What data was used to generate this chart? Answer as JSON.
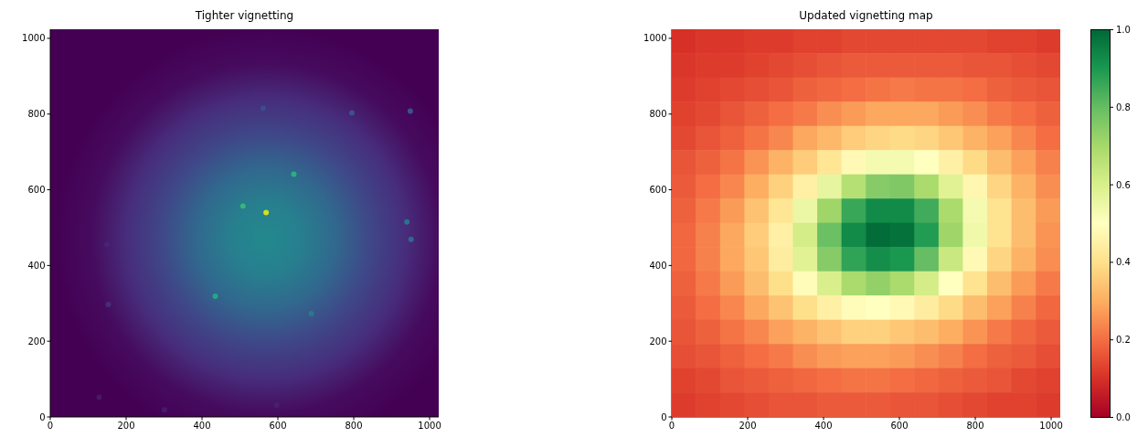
{
  "chart_data": [
    {
      "type": "scatter",
      "title": "Tighter vignetting",
      "x": [
        569,
        508,
        642,
        435,
        688,
        561,
        795,
        949,
        940,
        951,
        150,
        153,
        129,
        301,
        597
      ],
      "values": [
        540,
        557,
        641,
        319,
        273,
        815,
        803,
        808,
        515,
        469,
        456,
        297,
        52,
        19,
        31
      ],
      "colors": [
        "#d2e21b",
        "#35b779",
        "#29af7f",
        "#22a884",
        "#2a788e",
        "#3e4c8a",
        "#3b528b",
        "#3b528b",
        "#2c728e",
        "#30698e",
        "#482475",
        "#472c7a",
        "#48186a",
        "#481a6c",
        "#481f70"
      ],
      "marker": "circle",
      "xlim": [
        0,
        1024
      ],
      "ylim": [
        0,
        1024
      ],
      "xticks": [
        0,
        200,
        400,
        600,
        800,
        1000
      ],
      "yticks": [
        0,
        200,
        400,
        600,
        800,
        1000
      ]
    },
    {
      "type": "heatmap",
      "title": "Updated vignetting map",
      "x": [
        32,
        96,
        160,
        224,
        288,
        352,
        416,
        480,
        544,
        608,
        672,
        736,
        800,
        864,
        928,
        992
      ],
      "y": [
        992,
        928,
        864,
        800,
        736,
        672,
        608,
        544,
        480,
        416,
        352,
        288,
        224,
        160,
        96,
        32
      ],
      "xlim": [
        0,
        1024
      ],
      "ylim": [
        0,
        1024
      ],
      "xticks": [
        0,
        200,
        400,
        600,
        800,
        1000
      ],
      "yticks": [
        0,
        200,
        400,
        600,
        800,
        1000
      ],
      "clim": [
        0,
        1
      ],
      "cticks": [
        {
          "value": 0,
          "label": "0.0"
        },
        0.2,
        0.4,
        0.6,
        0.8,
        {
          "value": 1,
          "label": "1.0"
        }
      ],
      "cells": [
        [
          0.1,
          0.11,
          0.11,
          0.12,
          0.12,
          0.13,
          0.13,
          0.14,
          0.14,
          0.14,
          0.14,
          0.14,
          0.14,
          0.13,
          0.13,
          0.12
        ],
        [
          0.11,
          0.12,
          0.12,
          0.13,
          0.14,
          0.15,
          0.16,
          0.17,
          0.17,
          0.17,
          0.17,
          0.17,
          0.16,
          0.16,
          0.15,
          0.14
        ],
        [
          0.12,
          0.13,
          0.14,
          0.15,
          0.16,
          0.18,
          0.19,
          0.2,
          0.21,
          0.22,
          0.21,
          0.21,
          0.2,
          0.18,
          0.17,
          0.16
        ],
        [
          0.13,
          0.14,
          0.16,
          0.18,
          0.2,
          0.22,
          0.25,
          0.27,
          0.29,
          0.29,
          0.29,
          0.27,
          0.25,
          0.22,
          0.2,
          0.18
        ],
        [
          0.14,
          0.16,
          0.18,
          0.21,
          0.24,
          0.29,
          0.32,
          0.36,
          0.38,
          0.39,
          0.38,
          0.35,
          0.31,
          0.28,
          0.24,
          0.2
        ],
        [
          0.16,
          0.18,
          0.21,
          0.26,
          0.31,
          0.36,
          0.42,
          0.48,
          0.53,
          0.53,
          0.5,
          0.45,
          0.39,
          0.33,
          0.28,
          0.23
        ],
        [
          0.17,
          0.2,
          0.24,
          0.3,
          0.37,
          0.45,
          0.56,
          0.67,
          0.75,
          0.76,
          0.69,
          0.58,
          0.47,
          0.38,
          0.31,
          0.25
        ],
        [
          0.18,
          0.22,
          0.27,
          0.34,
          0.42,
          0.55,
          0.71,
          0.86,
          0.93,
          0.93,
          0.85,
          0.69,
          0.53,
          0.41,
          0.33,
          0.27
        ],
        [
          0.19,
          0.23,
          0.29,
          0.36,
          0.45,
          0.61,
          0.79,
          0.93,
          0.99,
          0.98,
          0.89,
          0.71,
          0.54,
          0.41,
          0.33,
          0.26
        ],
        [
          0.19,
          0.23,
          0.29,
          0.35,
          0.44,
          0.58,
          0.75,
          0.87,
          0.92,
          0.9,
          0.8,
          0.63,
          0.48,
          0.38,
          0.31,
          0.25
        ],
        [
          0.18,
          0.22,
          0.27,
          0.33,
          0.4,
          0.49,
          0.6,
          0.69,
          0.73,
          0.69,
          0.61,
          0.5,
          0.41,
          0.33,
          0.27,
          0.22
        ],
        [
          0.17,
          0.2,
          0.24,
          0.29,
          0.34,
          0.4,
          0.45,
          0.49,
          0.5,
          0.48,
          0.44,
          0.39,
          0.33,
          0.28,
          0.23,
          0.19
        ],
        [
          0.16,
          0.18,
          0.21,
          0.24,
          0.28,
          0.31,
          0.34,
          0.37,
          0.37,
          0.35,
          0.33,
          0.3,
          0.26,
          0.22,
          0.19,
          0.17
        ],
        [
          0.15,
          0.16,
          0.18,
          0.2,
          0.22,
          0.25,
          0.27,
          0.28,
          0.28,
          0.27,
          0.25,
          0.23,
          0.2,
          0.18,
          0.17,
          0.15
        ],
        [
          0.13,
          0.14,
          0.16,
          0.17,
          0.18,
          0.19,
          0.2,
          0.21,
          0.21,
          0.2,
          0.19,
          0.18,
          0.17,
          0.16,
          0.14,
          0.13
        ],
        [
          0.12,
          0.13,
          0.14,
          0.15,
          0.16,
          0.16,
          0.17,
          0.17,
          0.17,
          0.16,
          0.16,
          0.15,
          0.14,
          0.13,
          0.13,
          0.12
        ]
      ]
    }
  ]
}
